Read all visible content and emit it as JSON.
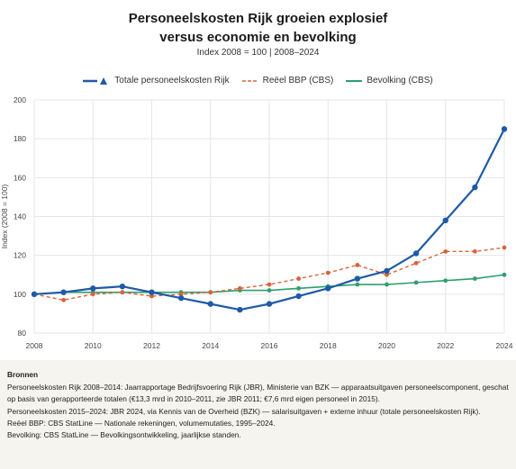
{
  "title_line1": "Personeelskosten Rijk groeien explosief",
  "title_line2": "versus economie en bevolking",
  "subtitle": "Index 2008 = 100  |  2008–2024",
  "colors": {
    "personnel": "#1f5aa6",
    "bbp": "#d9633a",
    "population": "#2e9e6e",
    "grid": "#e6e6e6"
  },
  "chart_data": {
    "type": "line",
    "x": [
      2008,
      2009,
      2010,
      2011,
      2012,
      2013,
      2014,
      2015,
      2016,
      2017,
      2018,
      2019,
      2020,
      2021,
      2022,
      2023,
      2024
    ],
    "xticks": [
      2008,
      2010,
      2012,
      2014,
      2016,
      2018,
      2020,
      2022,
      2024
    ],
    "yticks": [
      80,
      100,
      120,
      140,
      160,
      180,
      200
    ],
    "ylim": [
      80,
      200
    ],
    "xlim": [
      2008,
      2024
    ],
    "ylabel": "Index (2008 = 100)",
    "xlabel": "",
    "grid": true,
    "legend_position": "top",
    "series": [
      {
        "name": "Totale personeelskosten Rijk",
        "style": "solid",
        "marker": "circle",
        "color": "#1f5aa6",
        "values": [
          100,
          101,
          103,
          104,
          101,
          98,
          95,
          92,
          95,
          99,
          103,
          108,
          112,
          121,
          138,
          155,
          185
        ]
      },
      {
        "name": "Reëel BBP (CBS)",
        "style": "dashed",
        "marker": "circle",
        "color": "#d9633a",
        "values": [
          100,
          97,
          100,
          101,
          99,
          100,
          101,
          103,
          105,
          108,
          111,
          115,
          110,
          116,
          122,
          122,
          124
        ]
      },
      {
        "name": "Bevolking (CBS)",
        "style": "solid",
        "marker": "circle",
        "color": "#2e9e6e",
        "values": [
          100,
          101,
          101,
          101,
          101,
          101,
          101,
          102,
          102,
          103,
          104,
          105,
          105,
          106,
          107,
          108,
          110
        ]
      }
    ]
  },
  "sources": {
    "heading": "Bronnen",
    "lines": [
      "Personeelskosten Rijk 2008–2014: Jaarrapportage Bedrijfsvoering Rijk (JBR), Ministerie van BZK — apparaatsuitgaven personeelscomponent, geschat op basis van gerapporteerde totalen (€13,3 mrd in 2010–2011, zie JBR 2011; €7,6 mrd eigen personeel in 2015).",
      "Personeelskosten 2015–2024: JBR 2024, via Kennis van de Overheid (BZK) — salarisuitgaven + externe inhuur (totale personeelskosten Rijk).",
      "Reëel BBP: CBS StatLine — Nationale rekeningen, volumemutaties, 1995–2024.",
      "Bevolking: CBS StatLine — Bevolkingsontwikkeling, jaarlijkse standen."
    ]
  }
}
